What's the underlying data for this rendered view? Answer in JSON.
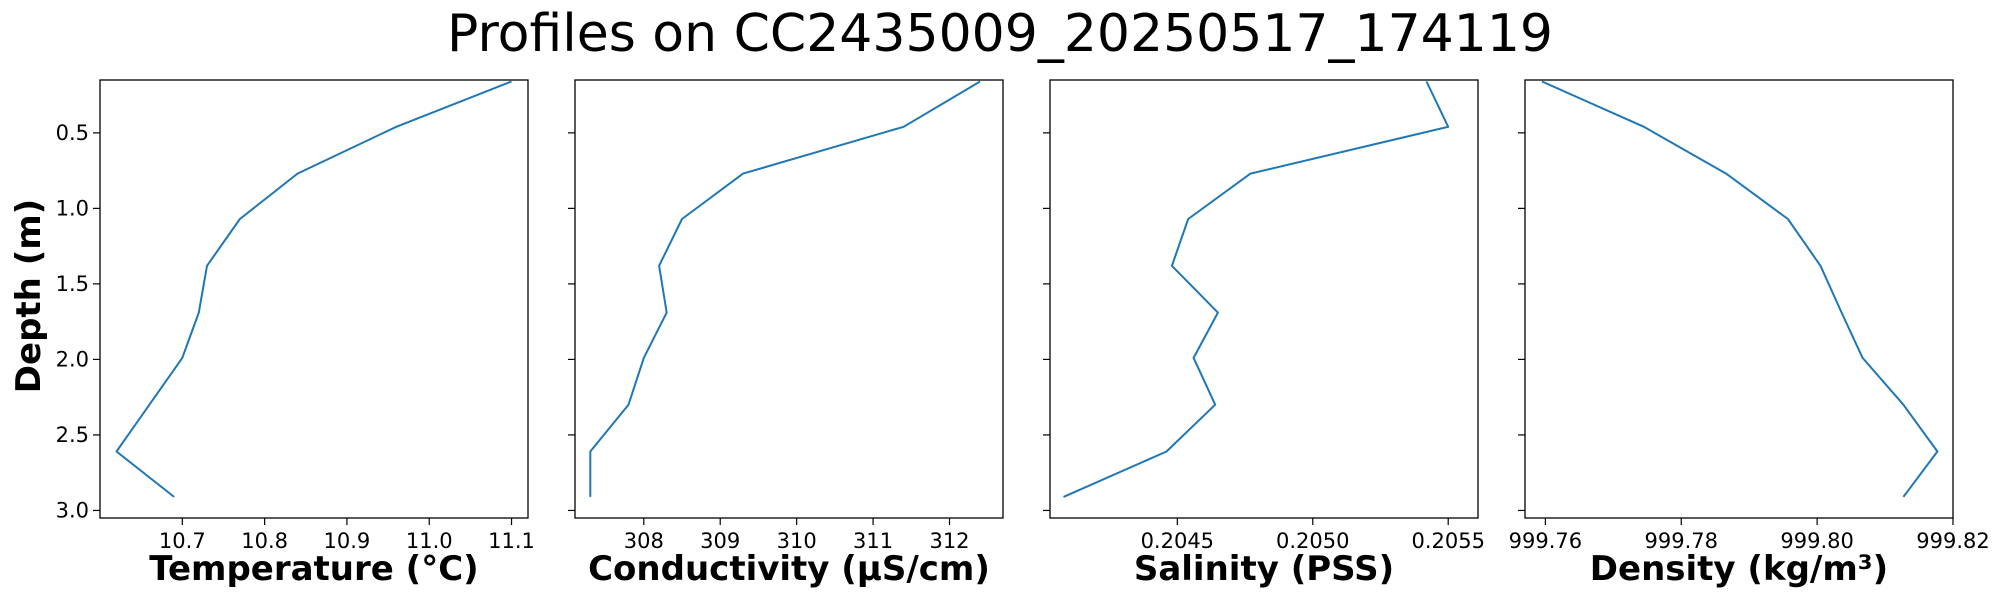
{
  "title": "Profiles on CC2435009_20250517_174119",
  "chart_data": {
    "type": "line",
    "ylabel": "Depth (m)",
    "ylim": [
      3.05,
      0.15
    ],
    "y_inverted": true,
    "yticks": [
      "0.5",
      "1.0",
      "1.5",
      "2.0",
      "2.5",
      "3.0"
    ],
    "depth": [
      0.16,
      0.46,
      0.77,
      1.07,
      1.38,
      1.69,
      1.99,
      2.3,
      2.61,
      2.91
    ],
    "series_color": "#1f77b4",
    "grid": false,
    "panels": [
      {
        "xlabel": "Temperature (°C)",
        "xlim": [
          10.6,
          11.12
        ],
        "xticks": [
          "10.7",
          "10.8",
          "10.9",
          "11.0",
          "11.1"
        ],
        "values": [
          11.1,
          10.96,
          10.84,
          10.77,
          10.73,
          10.72,
          10.7,
          10.66,
          10.62,
          10.69
        ]
      },
      {
        "xlabel": "Conductivity (µS/cm)",
        "xlim": [
          307.1,
          312.7
        ],
        "xticks": [
          "308",
          "309",
          "310",
          "311",
          "312"
        ],
        "values": [
          312.4,
          311.4,
          309.3,
          308.5,
          308.2,
          308.3,
          308.0,
          307.8,
          307.3,
          307.3
        ]
      },
      {
        "xlabel": "Salinity (PSS)",
        "xlim": [
          0.20403,
          0.20561
        ],
        "xticks": [
          "0.2045",
          "0.2050",
          "0.2055"
        ],
        "values": [
          0.20542,
          0.2055,
          0.20477,
          0.20454,
          0.20448,
          0.20465,
          0.20456,
          0.20464,
          0.20446,
          0.20408
        ]
      },
      {
        "xlabel": "Density (kg/m³)",
        "xlim": [
          999.757,
          999.82
        ],
        "xticks": [
          "999.76",
          "999.78",
          "999.80",
          "999.82"
        ],
        "values": [
          999.7595,
          999.7745,
          999.7866,
          999.7957,
          999.8005,
          999.8036,
          999.8067,
          999.8127,
          999.8177,
          999.8127
        ]
      }
    ]
  }
}
